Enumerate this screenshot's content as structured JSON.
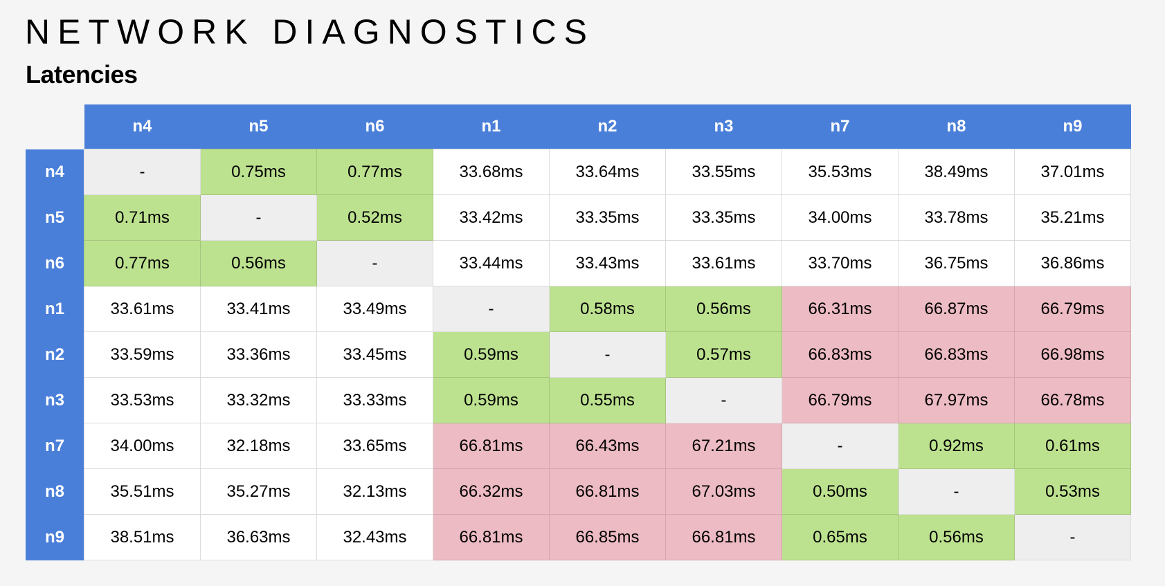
{
  "page": {
    "title": "NETWORK DIAGNOSTICS",
    "subtitle": "Latencies"
  },
  "colors": {
    "header": "#4a7fd9",
    "low_latency": "#bde28f",
    "high_latency": "#edbbc3",
    "self": "#eeeeee",
    "normal": "#ffffff"
  },
  "table": {
    "columns": [
      "n4",
      "n5",
      "n6",
      "n1",
      "n2",
      "n3",
      "n7",
      "n8",
      "n9"
    ],
    "rows": [
      {
        "label": "n4",
        "cells": [
          {
            "v": "-",
            "c": "self"
          },
          {
            "v": "0.75ms",
            "c": "low"
          },
          {
            "v": "0.77ms",
            "c": "low"
          },
          {
            "v": "33.68ms",
            "c": "normal"
          },
          {
            "v": "33.64ms",
            "c": "normal"
          },
          {
            "v": "33.55ms",
            "c": "normal"
          },
          {
            "v": "35.53ms",
            "c": "normal"
          },
          {
            "v": "38.49ms",
            "c": "normal"
          },
          {
            "v": "37.01ms",
            "c": "normal"
          }
        ]
      },
      {
        "label": "n5",
        "cells": [
          {
            "v": "0.71ms",
            "c": "low"
          },
          {
            "v": "-",
            "c": "self"
          },
          {
            "v": "0.52ms",
            "c": "low"
          },
          {
            "v": "33.42ms",
            "c": "normal"
          },
          {
            "v": "33.35ms",
            "c": "normal"
          },
          {
            "v": "33.35ms",
            "c": "normal"
          },
          {
            "v": "34.00ms",
            "c": "normal"
          },
          {
            "v": "33.78ms",
            "c": "normal"
          },
          {
            "v": "35.21ms",
            "c": "normal"
          }
        ]
      },
      {
        "label": "n6",
        "cells": [
          {
            "v": "0.77ms",
            "c": "low"
          },
          {
            "v": "0.56ms",
            "c": "low"
          },
          {
            "v": "-",
            "c": "self"
          },
          {
            "v": "33.44ms",
            "c": "normal"
          },
          {
            "v": "33.43ms",
            "c": "normal"
          },
          {
            "v": "33.61ms",
            "c": "normal"
          },
          {
            "v": "33.70ms",
            "c": "normal"
          },
          {
            "v": "36.75ms",
            "c": "normal"
          },
          {
            "v": "36.86ms",
            "c": "normal"
          }
        ]
      },
      {
        "label": "n1",
        "cells": [
          {
            "v": "33.61ms",
            "c": "normal"
          },
          {
            "v": "33.41ms",
            "c": "normal"
          },
          {
            "v": "33.49ms",
            "c": "normal"
          },
          {
            "v": "-",
            "c": "self"
          },
          {
            "v": "0.58ms",
            "c": "low"
          },
          {
            "v": "0.56ms",
            "c": "low"
          },
          {
            "v": "66.31ms",
            "c": "high"
          },
          {
            "v": "66.87ms",
            "c": "high"
          },
          {
            "v": "66.79ms",
            "c": "high"
          }
        ]
      },
      {
        "label": "n2",
        "cells": [
          {
            "v": "33.59ms",
            "c": "normal"
          },
          {
            "v": "33.36ms",
            "c": "normal"
          },
          {
            "v": "33.45ms",
            "c": "normal"
          },
          {
            "v": "0.59ms",
            "c": "low"
          },
          {
            "v": "-",
            "c": "self"
          },
          {
            "v": "0.57ms",
            "c": "low"
          },
          {
            "v": "66.83ms",
            "c": "high"
          },
          {
            "v": "66.83ms",
            "c": "high"
          },
          {
            "v": "66.98ms",
            "c": "high"
          }
        ]
      },
      {
        "label": "n3",
        "cells": [
          {
            "v": "33.53ms",
            "c": "normal"
          },
          {
            "v": "33.32ms",
            "c": "normal"
          },
          {
            "v": "33.33ms",
            "c": "normal"
          },
          {
            "v": "0.59ms",
            "c": "low"
          },
          {
            "v": "0.55ms",
            "c": "low"
          },
          {
            "v": "-",
            "c": "self"
          },
          {
            "v": "66.79ms",
            "c": "high"
          },
          {
            "v": "67.97ms",
            "c": "high"
          },
          {
            "v": "66.78ms",
            "c": "high"
          }
        ]
      },
      {
        "label": "n7",
        "cells": [
          {
            "v": "34.00ms",
            "c": "normal"
          },
          {
            "v": "32.18ms",
            "c": "normal"
          },
          {
            "v": "33.65ms",
            "c": "normal"
          },
          {
            "v": "66.81ms",
            "c": "high"
          },
          {
            "v": "66.43ms",
            "c": "high"
          },
          {
            "v": "67.21ms",
            "c": "high"
          },
          {
            "v": "-",
            "c": "self"
          },
          {
            "v": "0.92ms",
            "c": "low"
          },
          {
            "v": "0.61ms",
            "c": "low"
          }
        ]
      },
      {
        "label": "n8",
        "cells": [
          {
            "v": "35.51ms",
            "c": "normal"
          },
          {
            "v": "35.27ms",
            "c": "normal"
          },
          {
            "v": "32.13ms",
            "c": "normal"
          },
          {
            "v": "66.32ms",
            "c": "high"
          },
          {
            "v": "66.81ms",
            "c": "high"
          },
          {
            "v": "67.03ms",
            "c": "high"
          },
          {
            "v": "0.50ms",
            "c": "low"
          },
          {
            "v": "-",
            "c": "self"
          },
          {
            "v": "0.53ms",
            "c": "low"
          }
        ]
      },
      {
        "label": "n9",
        "cells": [
          {
            "v": "38.51ms",
            "c": "normal"
          },
          {
            "v": "36.63ms",
            "c": "normal"
          },
          {
            "v": "32.43ms",
            "c": "normal"
          },
          {
            "v": "66.81ms",
            "c": "high"
          },
          {
            "v": "66.85ms",
            "c": "high"
          },
          {
            "v": "66.81ms",
            "c": "high"
          },
          {
            "v": "0.65ms",
            "c": "low"
          },
          {
            "v": "0.56ms",
            "c": "low"
          },
          {
            "v": "-",
            "c": "self"
          }
        ]
      }
    ]
  }
}
